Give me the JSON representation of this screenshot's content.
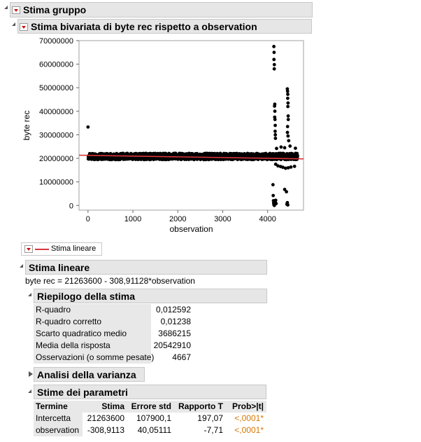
{
  "top_header": {
    "title": "Stima gruppo"
  },
  "bivariate_header": {
    "title": "Stima bivariata di byte rec rispetto a observation"
  },
  "chart_data": {
    "type": "scatter",
    "xlabel": "observation",
    "ylabel": "byte rec",
    "xlim": [
      -200,
      4800
    ],
    "ylim": [
      -2000000,
      70000000
    ],
    "x_ticks": [
      "0",
      "1000",
      "2000",
      "3000",
      "4000"
    ],
    "y_ticks": [
      "0",
      "10000000",
      "20000000",
      "30000000",
      "40000000",
      "50000000",
      "60000000",
      "70000000"
    ],
    "x_tick_values": [
      0,
      1000,
      2000,
      3000,
      4000
    ],
    "y_tick_values": [
      0,
      10000000,
      20000000,
      30000000,
      40000000,
      50000000,
      60000000,
      70000000
    ],
    "grid": false,
    "fit_line": {
      "intercept": 21263600,
      "slope": -308.91128,
      "color": "#d9363e"
    },
    "band": {
      "x_range": [
        0,
        4667
      ],
      "center": 20800000,
      "half_width": 1400000
    },
    "outliers": [
      [
        0,
        33300000
      ],
      [
        4140,
        67500000
      ],
      [
        4145,
        65000000
      ],
      [
        4142,
        62000000
      ],
      [
        4150,
        59800000
      ],
      [
        4148,
        58000000
      ],
      [
        4160,
        43000000
      ],
      [
        4155,
        42200000
      ],
      [
        4162,
        40000000
      ],
      [
        4158,
        37500000
      ],
      [
        4165,
        36500000
      ],
      [
        4170,
        34000000
      ],
      [
        4168,
        31500000
      ],
      [
        4172,
        30000000
      ],
      [
        4175,
        28500000
      ],
      [
        4440,
        49500000
      ],
      [
        4445,
        48500000
      ],
      [
        4450,
        47200000
      ],
      [
        4448,
        45500000
      ],
      [
        4455,
        43500000
      ],
      [
        4452,
        42000000
      ],
      [
        4458,
        38000000
      ],
      [
        4460,
        36500000
      ],
      [
        4445,
        33500000
      ],
      [
        4442,
        31000000
      ],
      [
        4455,
        29500000
      ],
      [
        4470,
        27500000
      ],
      [
        4120,
        8800000
      ],
      [
        4125,
        4200000
      ],
      [
        4130,
        2000000
      ],
      [
        4135,
        1000000
      ],
      [
        4140,
        300000
      ],
      [
        4150,
        0
      ],
      [
        4160,
        500000
      ],
      [
        4170,
        1500000
      ],
      [
        4180,
        2200000
      ],
      [
        4190,
        800000
      ],
      [
        4380,
        6800000
      ],
      [
        4420,
        5800000
      ],
      [
        4430,
        500000
      ],
      [
        4440,
        1200000
      ],
      [
        4450,
        200000
      ],
      [
        4180,
        17500000
      ],
      [
        4230,
        16800000
      ],
      [
        4290,
        16500000
      ],
      [
        4340,
        16200000
      ],
      [
        4400,
        15800000
      ],
      [
        4460,
        16000000
      ],
      [
        4520,
        16300000
      ],
      [
        4600,
        16600000
      ],
      [
        4200,
        24200000
      ],
      [
        4300,
        24800000
      ],
      [
        4380,
        24500000
      ],
      [
        4500,
        25200000
      ],
      [
        4620,
        24300000
      ]
    ]
  },
  "legend": {
    "label": "Stima lineare"
  },
  "fit_section": {
    "header": "Stima lineare",
    "equation": "byte rec = 21263600 - 308,91128*observation"
  },
  "summary": {
    "header": "Riepilogo della stima",
    "rows": [
      {
        "label": "R-quadro",
        "value": "0,012592"
      },
      {
        "label": "R-quadro corretto",
        "value": "0,01238"
      },
      {
        "label": "Scarto quadratico medio",
        "value": "3686215"
      },
      {
        "label": "Media della risposta",
        "value": "20542910"
      },
      {
        "label": "Osservazioni (o somme pesate)",
        "value": "4667"
      }
    ]
  },
  "anova": {
    "header": "Analisi della varianza"
  },
  "params": {
    "header": "Stime dei parametri",
    "columns": [
      "Termine",
      "Stima",
      "Errore std",
      "Rapporto T",
      "Prob>|t|"
    ],
    "rows": [
      {
        "term": "Intercetta",
        "estimate": "21263600",
        "stderr": "107900,1",
        "t": "197,07",
        "p": "<,0001*"
      },
      {
        "term": "observation",
        "estimate": "-308,9113",
        "stderr": "40,05111",
        "t": "-7,71",
        "p": "<,0001*"
      }
    ]
  }
}
